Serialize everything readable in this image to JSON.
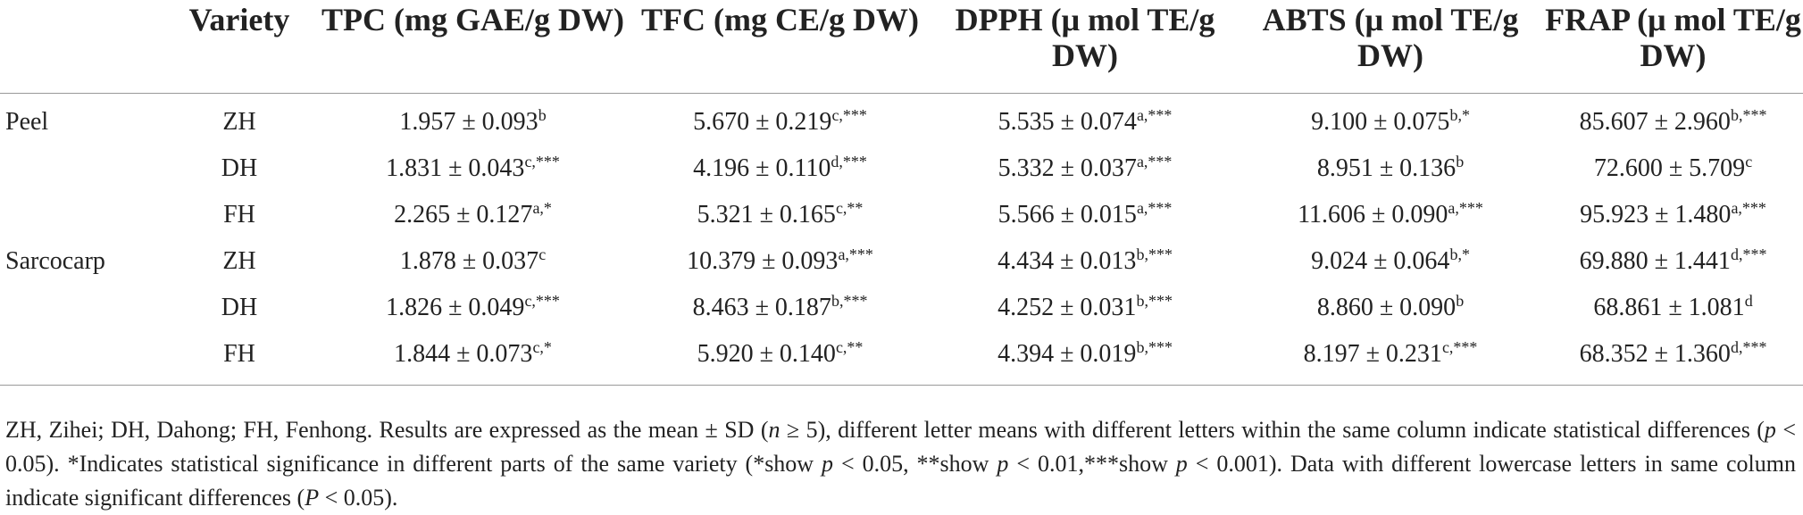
{
  "table": {
    "header": [
      "",
      "Variety",
      "TPC (mg GAE/g DW)",
      "TFC (mg CE/g DW)",
      "DPPH (μ mol TE/g DW)",
      "ABTS (μ mol TE/g DW)",
      "FRAP (μ mol TE/g DW)"
    ],
    "rows": [
      {
        "group": "Peel",
        "variety": "ZH",
        "cells": [
          {
            "text": "1.957 ± 0.093",
            "sup": "b"
          },
          {
            "text": "5.670 ± 0.219",
            "sup": "c,***"
          },
          {
            "text": "5.535 ± 0.074",
            "sup": "a,***"
          },
          {
            "text": "9.100 ± 0.075",
            "sup": "b,*"
          },
          {
            "text": "85.607 ± 2.960",
            "sup": "b,***"
          }
        ]
      },
      {
        "variety": "DH",
        "cells": [
          {
            "text": "1.831 ± 0.043",
            "sup": "c,***"
          },
          {
            "text": "4.196 ± 0.110",
            "sup": "d,***"
          },
          {
            "text": "5.332 ± 0.037",
            "sup": "a,***"
          },
          {
            "text": "8.951 ± 0.136",
            "sup": "b"
          },
          {
            "text": "72.600 ± 5.709",
            "sup": "c"
          }
        ]
      },
      {
        "variety": "FH",
        "cells": [
          {
            "text": "2.265 ± 0.127",
            "sup": "a,*"
          },
          {
            "text": "5.321 ± 0.165",
            "sup": "c,**"
          },
          {
            "text": "5.566 ± 0.015",
            "sup": "a,***"
          },
          {
            "text": "11.606 ± 0.090",
            "sup": "a,***"
          },
          {
            "text": "95.923 ± 1.480",
            "sup": "a,***"
          }
        ]
      },
      {
        "group": "Sarcocarp",
        "variety": "ZH",
        "cells": [
          {
            "text": "1.878 ± 0.037",
            "sup": "c"
          },
          {
            "text": "10.379 ± 0.093",
            "sup": "a,***"
          },
          {
            "text": "4.434 ± 0.013",
            "sup": "b,***"
          },
          {
            "text": "9.024 ± 0.064",
            "sup": "b,*"
          },
          {
            "text": "69.880 ± 1.441",
            "sup": "d,***"
          }
        ]
      },
      {
        "variety": "DH",
        "cells": [
          {
            "text": "1.826 ± 0.049",
            "sup": "c,***"
          },
          {
            "text": "8.463 ± 0.187",
            "sup": "b,***"
          },
          {
            "text": "4.252 ± 0.031",
            "sup": "b,***"
          },
          {
            "text": "8.860 ± 0.090",
            "sup": "b"
          },
          {
            "text": "68.861 ± 1.081",
            "sup": "d"
          }
        ]
      },
      {
        "variety": "FH",
        "cells": [
          {
            "text": "1.844 ± 0.073",
            "sup": "c,*"
          },
          {
            "text": "5.920 ± 0.140",
            "sup": "c,**"
          },
          {
            "text": "4.394 ± 0.019",
            "sup": "b,***"
          },
          {
            "text": "8.197 ± 0.231",
            "sup": "c,***"
          },
          {
            "text": "68.352 ± 1.360",
            "sup": "d,***"
          }
        ]
      }
    ]
  },
  "footnote": [
    {
      "text": "ZH, Zihei; DH, Dahong; FH, Fenhong. Results are expressed as the mean ± SD ("
    },
    {
      "em": "n"
    },
    {
      "text": " ≥ 5), different letter means with different letters within the same column indicate statistical differences ("
    },
    {
      "em": "p"
    },
    {
      "text": " < 0.05). *Indicates statistical significance in different parts of the same variety (*show "
    },
    {
      "em": "p"
    },
    {
      "text": " < 0.05, **show "
    },
    {
      "em": "p"
    },
    {
      "text": " < 0.01,***show "
    },
    {
      "em": "p"
    },
    {
      "text": " < 0.001). Data with different lowercase letters in same column indicate significant differences ("
    },
    {
      "em": "P"
    },
    {
      "text": " < 0.05)."
    }
  ]
}
